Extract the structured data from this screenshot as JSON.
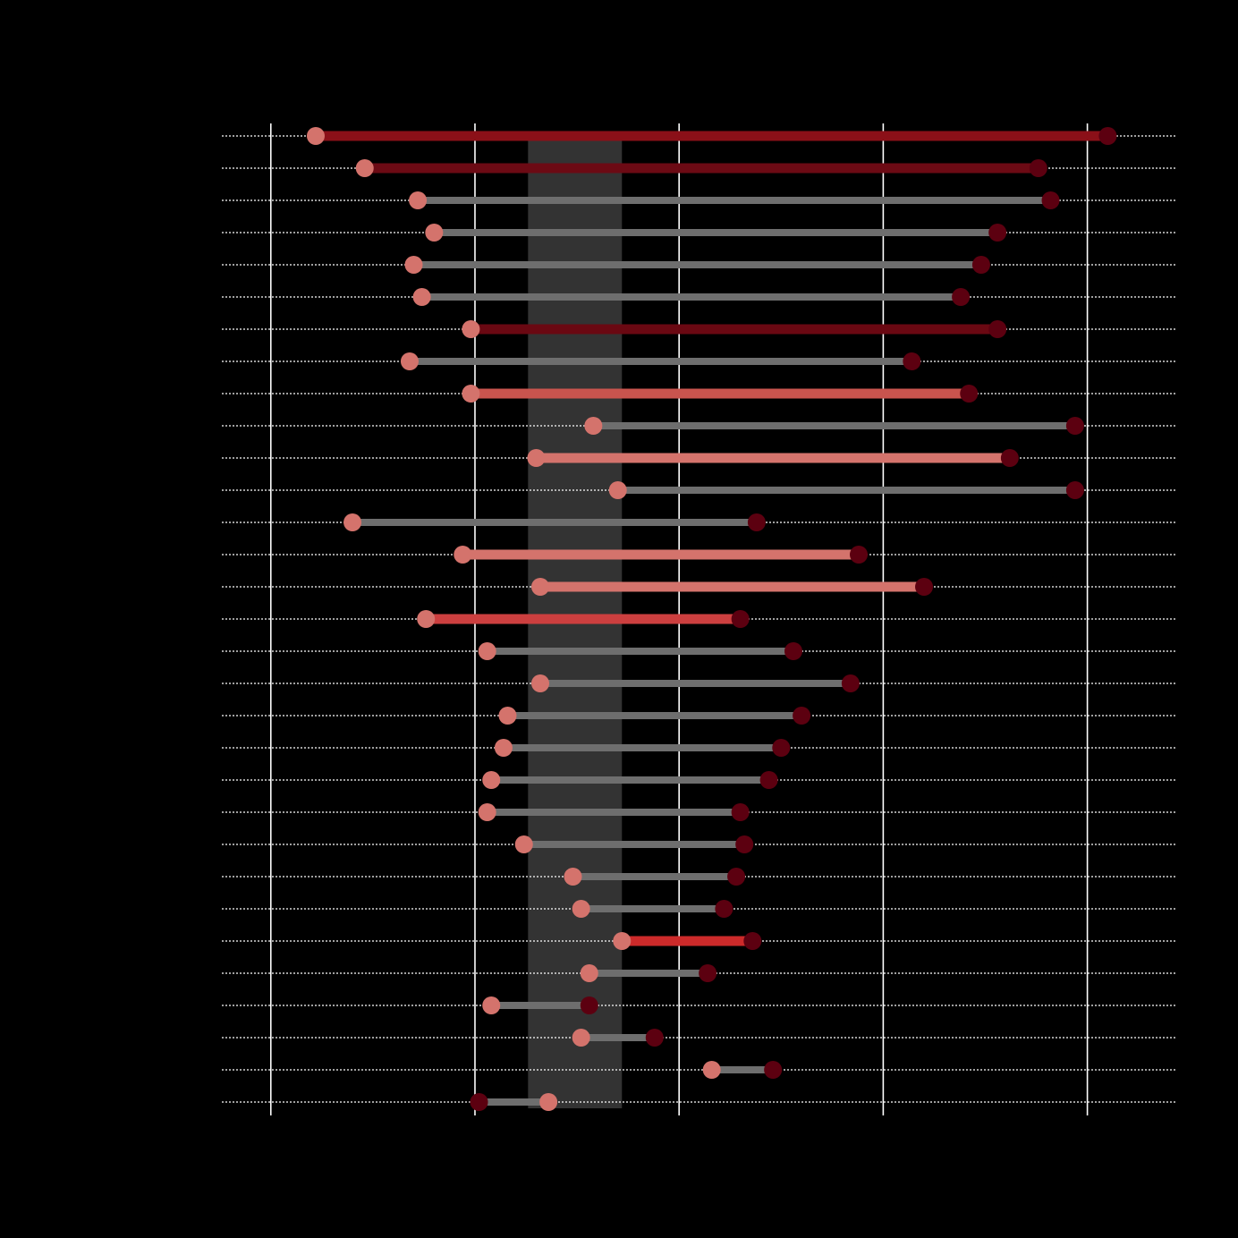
{
  "chart_data": {
    "type": "dumbbell",
    "title": "",
    "xlabel": "",
    "ylabel": "",
    "xlim": [
      -0.12,
      2.22
    ],
    "x_ticks": [
      0,
      0.5,
      1,
      1.5,
      2
    ],
    "grid": true,
    "shaded_band": {
      "from": 0.63,
      "to": 0.86,
      "color": "#333333"
    },
    "colors": {
      "background": "#000000",
      "start_point": "#d4736c",
      "end_point": "#5c0010",
      "neutral_segment": "#6e6e6e",
      "grid_line": "#ffffff"
    },
    "rows": [
      {
        "start": 0.11,
        "end": 2.05,
        "segment_color": "#8b1018",
        "highlight": true
      },
      {
        "start": 0.23,
        "end": 1.88,
        "segment_color": "#6c0a14",
        "highlight": true
      },
      {
        "start": 0.36,
        "end": 1.91,
        "segment_color": "#6e6e6e",
        "highlight": false
      },
      {
        "start": 0.4,
        "end": 1.78,
        "segment_color": "#6e6e6e",
        "highlight": false
      },
      {
        "start": 0.35,
        "end": 1.74,
        "segment_color": "#6e6e6e",
        "highlight": false
      },
      {
        "start": 0.37,
        "end": 1.69,
        "segment_color": "#6e6e6e",
        "highlight": false
      },
      {
        "start": 0.49,
        "end": 1.78,
        "segment_color": "#6a0812",
        "highlight": true
      },
      {
        "start": 0.34,
        "end": 1.57,
        "segment_color": "#6e6e6e",
        "highlight": false
      },
      {
        "start": 0.49,
        "end": 1.71,
        "segment_color": "#c9544e",
        "highlight": true
      },
      {
        "start": 0.79,
        "end": 1.97,
        "segment_color": "#6e6e6e",
        "highlight": false
      },
      {
        "start": 0.65,
        "end": 1.81,
        "segment_color": "#d4736c",
        "highlight": true
      },
      {
        "start": 0.85,
        "end": 1.97,
        "segment_color": "#6e6e6e",
        "highlight": false
      },
      {
        "start": 0.2,
        "end": 1.19,
        "segment_color": "#6e6e6e",
        "highlight": false
      },
      {
        "start": 0.47,
        "end": 1.44,
        "segment_color": "#d4736c",
        "highlight": true
      },
      {
        "start": 0.66,
        "end": 1.6,
        "segment_color": "#d4736c",
        "highlight": true
      },
      {
        "start": 0.38,
        "end": 1.15,
        "segment_color": "#cc3f3f",
        "highlight": true
      },
      {
        "start": 0.53,
        "end": 1.28,
        "segment_color": "#6e6e6e",
        "highlight": false
      },
      {
        "start": 0.66,
        "end": 1.42,
        "segment_color": "#6e6e6e",
        "highlight": false
      },
      {
        "start": 0.58,
        "end": 1.3,
        "segment_color": "#6e6e6e",
        "highlight": false
      },
      {
        "start": 0.57,
        "end": 1.25,
        "segment_color": "#6e6e6e",
        "highlight": false
      },
      {
        "start": 0.54,
        "end": 1.22,
        "segment_color": "#6e6e6e",
        "highlight": false
      },
      {
        "start": 0.53,
        "end": 1.15,
        "segment_color": "#6e6e6e",
        "highlight": false
      },
      {
        "start": 0.62,
        "end": 1.16,
        "segment_color": "#6e6e6e",
        "highlight": false
      },
      {
        "start": 0.74,
        "end": 1.14,
        "segment_color": "#6e6e6e",
        "highlight": false
      },
      {
        "start": 0.76,
        "end": 1.11,
        "segment_color": "#6e6e6e",
        "highlight": false
      },
      {
        "start": 0.86,
        "end": 1.18,
        "segment_color": "#cc2a2a",
        "highlight": true
      },
      {
        "start": 0.78,
        "end": 1.07,
        "segment_color": "#6e6e6e",
        "highlight": false
      },
      {
        "start": 0.54,
        "end": 0.78,
        "segment_color": "#6e6e6e",
        "highlight": false
      },
      {
        "start": 0.76,
        "end": 0.94,
        "segment_color": "#6e6e6e",
        "highlight": false
      },
      {
        "start": 1.08,
        "end": 1.23,
        "segment_color": "#6e6e6e",
        "highlight": false
      },
      {
        "start": 0.68,
        "end": 0.51,
        "segment_color": "#6e6e6e",
        "highlight": false
      }
    ]
  }
}
